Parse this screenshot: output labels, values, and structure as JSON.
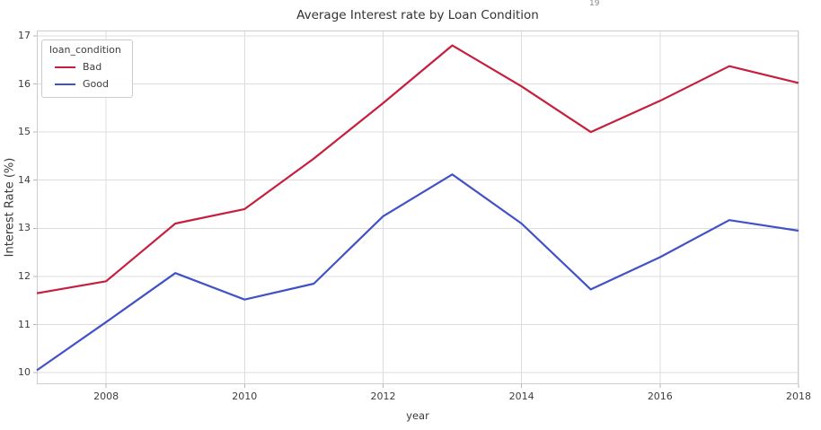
{
  "artifact_text": "19",
  "chart_data": {
    "type": "line",
    "title": "Average Interest rate by Loan Condition",
    "xlabel": "year",
    "ylabel": "Interest Rate (%)",
    "legend_title": "loan_condition",
    "legend_position": "upper left",
    "grid": true,
    "x": [
      2007,
      2008,
      2009,
      2010,
      2011,
      2012,
      2013,
      2014,
      2015,
      2016,
      2017,
      2018
    ],
    "series": [
      {
        "name": "Bad",
        "color": "#c51f3d",
        "values": [
          11.65,
          11.9,
          13.1,
          13.4,
          14.45,
          15.6,
          16.8,
          15.95,
          15.0,
          15.65,
          16.37,
          16.02
        ]
      },
      {
        "name": "Good",
        "color": "#4152c6",
        "values": [
          10.05,
          11.05,
          12.07,
          11.52,
          11.85,
          13.25,
          14.12,
          13.1,
          11.73,
          12.4,
          13.17,
          12.95
        ]
      }
    ],
    "xlim": [
      2007,
      2018
    ],
    "ylim": [
      9.76,
      17.11
    ],
    "xticks": [
      "2008",
      "2010",
      "2012",
      "2014",
      "2016",
      "2018"
    ],
    "yticks": [
      "10",
      "11",
      "12",
      "13",
      "14",
      "15",
      "16",
      "17"
    ],
    "colors": {
      "grid": "#dcdcdc",
      "spine": "#cccccc",
      "tick": "#b5b5b5",
      "text": "#3d3d3d"
    }
  }
}
